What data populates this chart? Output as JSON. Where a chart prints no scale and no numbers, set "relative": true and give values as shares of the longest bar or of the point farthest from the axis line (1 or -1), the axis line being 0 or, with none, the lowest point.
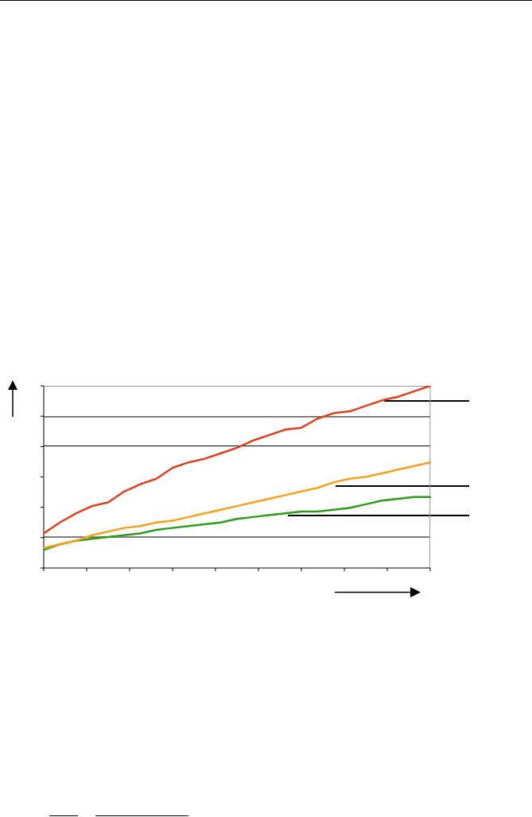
{
  "chart_data": {
    "type": "line",
    "relative": true,
    "legend": false,
    "marker": "none",
    "line_style": "solid",
    "categories": [
      null,
      null,
      null,
      null,
      null,
      null,
      null,
      null,
      null,
      null,
      null,
      null,
      null,
      null,
      null,
      null,
      null,
      null,
      null,
      null,
      null,
      null,
      null,
      null,
      null
    ],
    "series": [
      {
        "color": "#e03c1e",
        "values": [
          0.19,
          0.25,
          0.3,
          0.34,
          0.36,
          0.42,
          0.46,
          0.49,
          0.55,
          0.58,
          0.6,
          0.63,
          0.66,
          0.7,
          0.73,
          0.76,
          0.77,
          0.82,
          0.85,
          0.86,
          0.89,
          0.92,
          0.94,
          0.97,
          1
        ]
      },
      {
        "color": "#f7a11a",
        "values": [
          0.11,
          0.13,
          0.15,
          0.18,
          0.2,
          0.22,
          0.23,
          0.25,
          0.26,
          0.28,
          0.3,
          0.32,
          0.34,
          0.36,
          0.38,
          0.4,
          0.42,
          0.44,
          0.47,
          0.49,
          0.5,
          0.52,
          0.54,
          0.56,
          0.58
        ]
      },
      {
        "color": "#2e9a1c",
        "values": [
          0.1,
          0.13,
          0.15,
          0.16,
          0.17,
          0.18,
          0.19,
          0.21,
          0.22,
          0.23,
          0.24,
          0.25,
          0.27,
          0.28,
          0.29,
          0.3,
          0.31,
          0.31,
          0.32,
          0.33,
          0.35,
          0.37,
          0.38,
          0.39,
          0.39
        ]
      }
    ],
    "ref_lines": [
      {
        "axis": "y",
        "value": 0.83,
        "color": "#000000"
      },
      {
        "axis": "y",
        "value": 0.67,
        "color": "#000000"
      },
      {
        "axis": "y",
        "value": 0.17,
        "color": "#000000"
      }
    ]
  }
}
